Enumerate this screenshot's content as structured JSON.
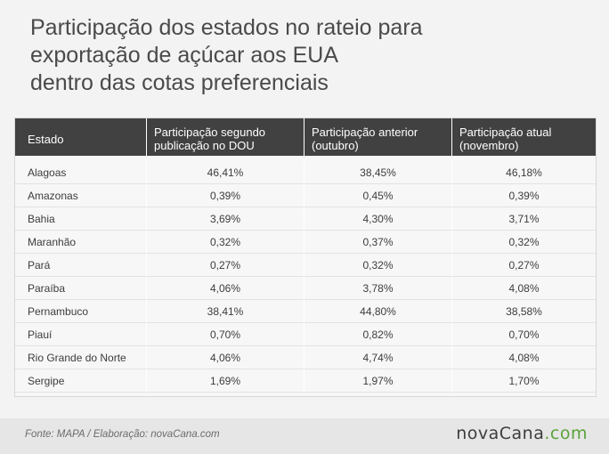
{
  "title": {
    "line1": "Participação dos estados no rateio para",
    "line2": "exportação de açúcar aos EUA",
    "line3": "dentro das cotas preferenciais"
  },
  "table": {
    "headers": [
      "Estado",
      "Participação segundo publicação no DOU",
      "Participação anterior (outubro)",
      "Participação atual (novembro)"
    ],
    "rows": [
      [
        "Alagoas",
        "46,41%",
        "38,45%",
        "46,18%"
      ],
      [
        "Amazonas",
        "0,39%",
        "0,45%",
        "0,39%"
      ],
      [
        "Bahia",
        "3,69%",
        "4,30%",
        "3,71%"
      ],
      [
        "Maranhão",
        "0,32%",
        "0,37%",
        "0,32%"
      ],
      [
        "Pará",
        "0,27%",
        "0,32%",
        "0,27%"
      ],
      [
        "Paraíba",
        "4,06%",
        "3,78%",
        "4,08%"
      ],
      [
        "Pernambuco",
        "38,41%",
        "44,80%",
        "38,58%"
      ],
      [
        "Piauí",
        "0,70%",
        "0,82%",
        "0,70%"
      ],
      [
        "Rio Grande do Norte",
        "4,06%",
        "4,74%",
        "4,08%"
      ],
      [
        "Sergipe",
        "1,69%",
        "1,97%",
        "1,70%"
      ]
    ]
  },
  "footer": {
    "source": "Fonte: MAPA / Elaboração:  novaCana.com",
    "brand_part1": "novaCana",
    "brand_part2": ".com"
  },
  "colors": {
    "header_bg": "#414141",
    "brand_green": "#5aa33b"
  }
}
